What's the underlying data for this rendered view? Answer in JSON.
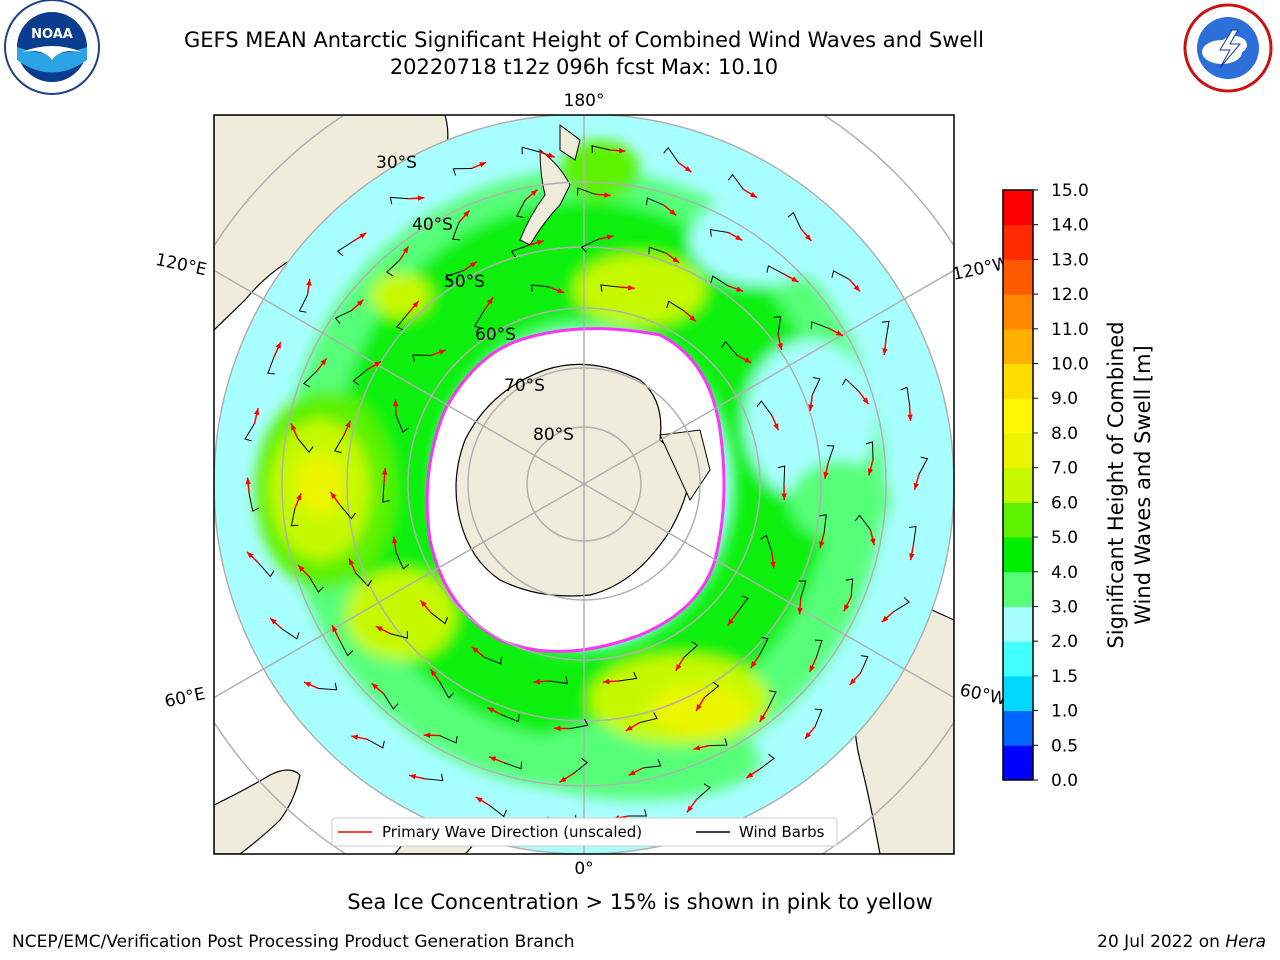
{
  "title": {
    "line1": "GEFS MEAN Antarctic Significant Height of Combined Wind Waves and Swell",
    "line2": "20220718 t12z 096h fcst   Max: 10.10"
  },
  "map": {
    "projection": "south-polar-stereographic",
    "meridian_labels": [
      "180°",
      "120°E",
      "120°W",
      "60°E",
      "60°W",
      "0°"
    ],
    "parallel_labels": [
      "30°S",
      "40°S",
      "50°S",
      "60°S",
      "70°S",
      "80°S"
    ],
    "legend": {
      "wave_label": "Primary Wave Direction (unscaled)",
      "barb_label": "Wind Barbs",
      "wave_color": "#ff0000",
      "barb_color": "#000000"
    }
  },
  "colorbar": {
    "title_line1": "Significant Height of Combined",
    "title_line2": "Wind Waves and Swell [m]",
    "ticks": [
      "0.0",
      "0.5",
      "1.0",
      "1.5",
      "2.0",
      "3.0",
      "4.0",
      "5.0",
      "6.0",
      "7.0",
      "8.0",
      "9.0",
      "10.0",
      "11.0",
      "12.0",
      "13.0",
      "14.0",
      "15.0"
    ],
    "colors": [
      "#0000ff",
      "#0066ff",
      "#00d8ff",
      "#42ffff",
      "#a8ffff",
      "#57ff78",
      "#00ee00",
      "#5cf200",
      "#c6f900",
      "#ecf500",
      "#fff700",
      "#ffdd00",
      "#ffb000",
      "#ff8800",
      "#ff5a00",
      "#ff2a00",
      "#ff0000"
    ]
  },
  "caption": "Sea Ice Concentration > 15% is shown in pink to yellow",
  "footer": {
    "left": "NCEP/EMC/Verification Post Processing Product Generation Branch",
    "right_prefix": "20 Jul 2022 on ",
    "right_machine": "Hera"
  },
  "logos": {
    "noaa_text": "NOAA",
    "nws_text": "NATIONAL WEATHER SERVICE"
  }
}
